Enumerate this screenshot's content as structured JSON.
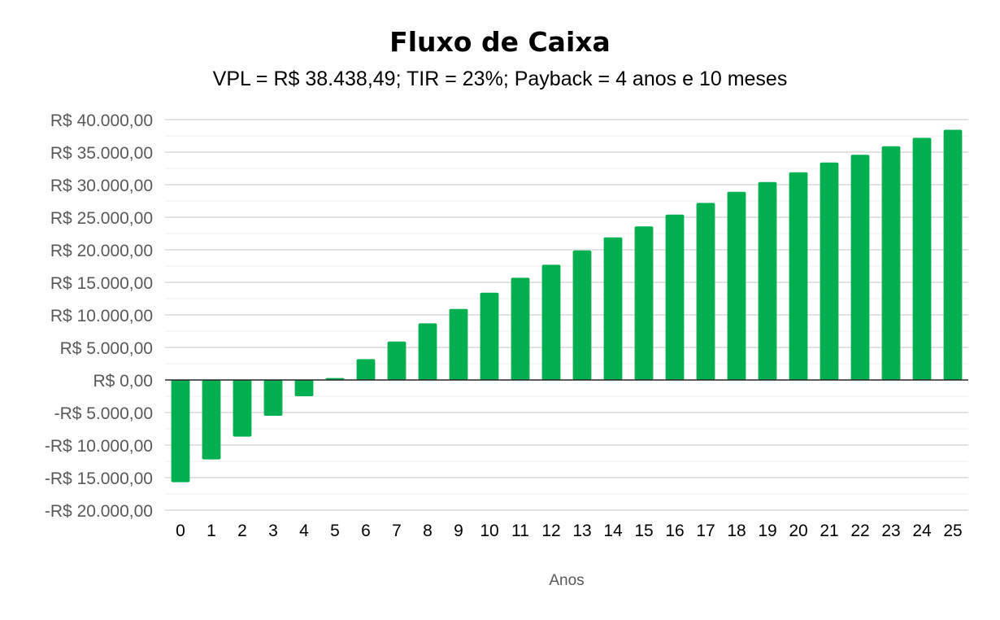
{
  "chart_data": {
    "type": "bar",
    "title": "Fluxo de Caixa",
    "subtitle": "VPL = R$ 38.438,49; TIR = 23%; Payback = 4 anos e 10 meses",
    "xlabel": "Anos",
    "ylabel": "",
    "ylim": [
      -20000,
      40000
    ],
    "y_major_step": 5000,
    "grid": true,
    "legend": "none",
    "bar_color": "#00b050",
    "categories": [
      "0",
      "1",
      "2",
      "3",
      "4",
      "5",
      "6",
      "7",
      "8",
      "9",
      "10",
      "11",
      "12",
      "13",
      "14",
      "15",
      "16",
      "17",
      "18",
      "19",
      "20",
      "21",
      "22",
      "23",
      "24",
      "25"
    ],
    "values": [
      -15700,
      -12200,
      -8700,
      -5500,
      -2500,
      300,
      3200,
      5900,
      8700,
      10900,
      13400,
      15700,
      17700,
      19900,
      21900,
      23600,
      25400,
      27200,
      28900,
      30400,
      31900,
      33400,
      34600,
      35900,
      37200,
      38438.49
    ],
    "ytick_labels": [
      "R$ 40.000,00",
      "R$ 35.000,00",
      "R$ 30.000,00",
      "R$ 25.000,00",
      "R$ 20.000,00",
      "R$ 15.000,00",
      "R$ 10.000,00",
      "R$ 5.000,00",
      "R$ 0,00",
      "-R$ 5.000,00",
      "-R$ 10.000,00",
      "-R$ 15.000,00",
      "-R$ 20.000,00"
    ]
  }
}
